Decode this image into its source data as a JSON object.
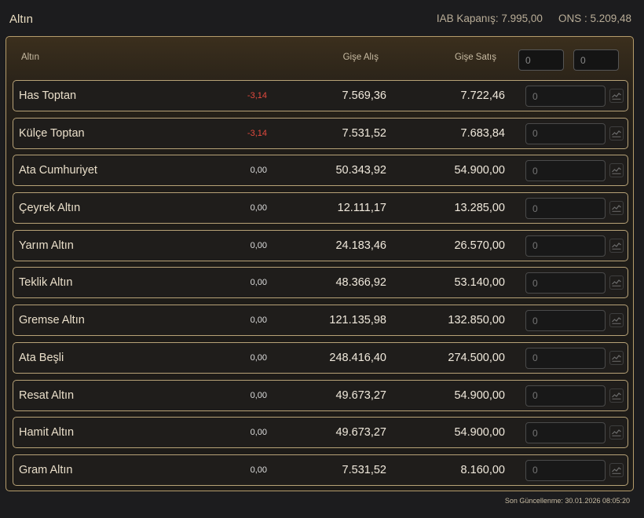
{
  "header": {
    "title": "Altın",
    "iab_close": "IAB Kapanış: 7.995,00",
    "ons": "ONS : 5.209,48"
  },
  "table": {
    "col_name": "Altın",
    "col_buy": "Gişe Alış",
    "col_sell": "Gişe Satış",
    "filter1_value": "0",
    "filter2_value": "0",
    "rows": [
      {
        "name": "Has Toptan",
        "change": "-3,14",
        "buy": "7.569,36",
        "sell": "7.722,46",
        "input": "0",
        "neg": true
      },
      {
        "name": "Külçe Toptan",
        "change": "-3,14",
        "buy": "7.531,52",
        "sell": "7.683,84",
        "input": "0",
        "neg": true
      },
      {
        "name": "Ata Cumhuriyet",
        "change": "0,00",
        "buy": "50.343,92",
        "sell": "54.900,00",
        "input": "0",
        "neg": false
      },
      {
        "name": "Çeyrek Altın",
        "change": "0,00",
        "buy": "12.111,17",
        "sell": "13.285,00",
        "input": "0",
        "neg": false
      },
      {
        "name": "Yarım Altın",
        "change": "0,00",
        "buy": "24.183,46",
        "sell": "26.570,00",
        "input": "0",
        "neg": false
      },
      {
        "name": "Teklik Altın",
        "change": "0,00",
        "buy": "48.366,92",
        "sell": "53.140,00",
        "input": "0",
        "neg": false
      },
      {
        "name": "Gremse Altın",
        "change": "0,00",
        "buy": "121.135,98",
        "sell": "132.850,00",
        "input": "0",
        "neg": false
      },
      {
        "name": "Ata Beşli",
        "change": "0,00",
        "buy": "248.416,40",
        "sell": "274.500,00",
        "input": "0",
        "neg": false
      },
      {
        "name": "Resat Altın",
        "change": "0,00",
        "buy": "49.673,27",
        "sell": "54.900,00",
        "input": "0",
        "neg": false
      },
      {
        "name": "Hamit Altın",
        "change": "0,00",
        "buy": "49.673,27",
        "sell": "54.900,00",
        "input": "0",
        "neg": false
      },
      {
        "name": "Gram Altın",
        "change": "0,00",
        "buy": "7.531,52",
        "sell": "8.160,00",
        "input": "0",
        "neg": false
      }
    ]
  },
  "footer": {
    "last_updated": "Son Güncellenme: 30.01.2026 08:05:20"
  },
  "colors": {
    "negative": "#e34a3e",
    "border_gold": "#b7a277"
  },
  "icons": {
    "row_action": "chart-icon"
  }
}
